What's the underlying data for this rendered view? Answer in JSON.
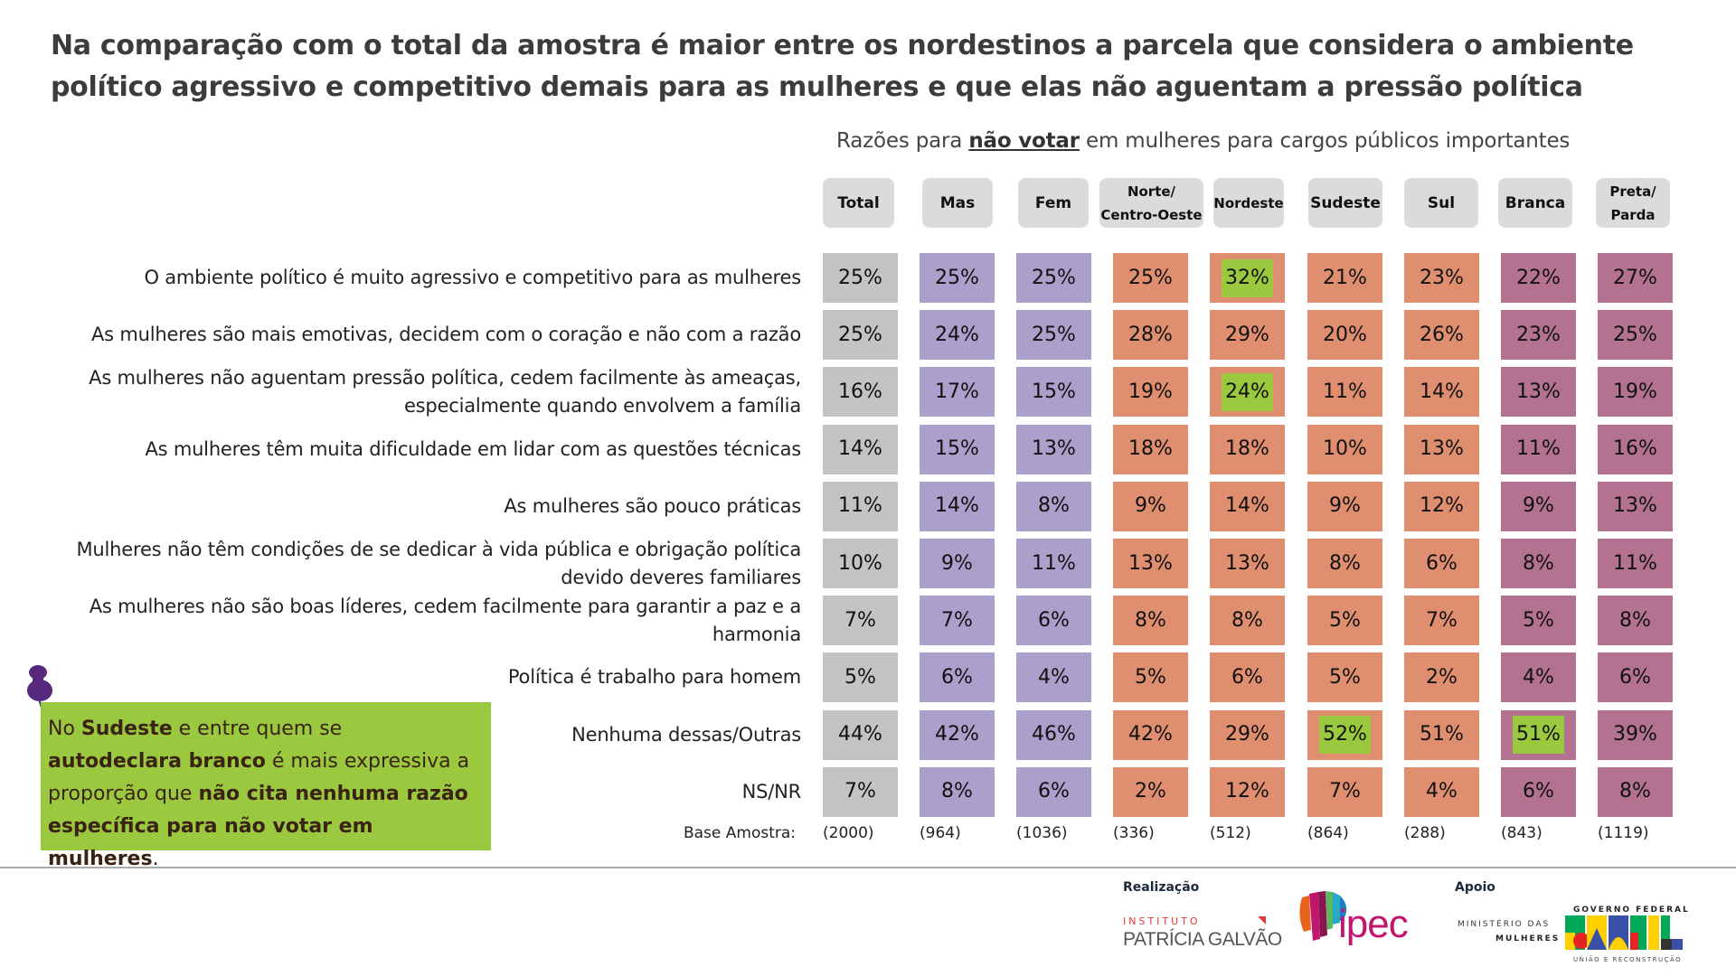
{
  "title": "Na comparação com o total da amostra é maior entre os nordestinos a parcela que considera o ambiente político agressivo e competitivo demais para as mulheres e que elas não aguentam a pressão política",
  "subtitle": {
    "prefix": "Razões para ",
    "emphasis": "não votar",
    "suffix": " em mulheres para cargos públicos importantes"
  },
  "colors": {
    "header_bg": "#dcdbdc",
    "total": "#c4c3c2",
    "gender": "#ab9fcb",
    "region": "#df8e70",
    "race": "#b3728f",
    "highlight": "#9ac83f"
  },
  "chart_data": {
    "type": "table",
    "title": "Razões para não votar em mulheres para cargos públicos importantes",
    "columns": [
      {
        "label": "Total",
        "group": "total",
        "base": "(2000)"
      },
      {
        "label": "Mas",
        "group": "gender",
        "base": "(964)"
      },
      {
        "label": "Fem",
        "group": "gender",
        "base": "(1036)"
      },
      {
        "label": "Norte/ Centro-Oeste",
        "group": "region",
        "base": "(336)"
      },
      {
        "label": "Nordeste",
        "group": "region",
        "base": "(512)"
      },
      {
        "label": "Sudeste",
        "group": "region",
        "base": "(864)"
      },
      {
        "label": "Sul",
        "group": "region",
        "base": "(288)"
      },
      {
        "label": "Branca",
        "group": "race",
        "base": "(843)"
      },
      {
        "label": "Preta/ Parda",
        "group": "race",
        "base": "(1119)"
      }
    ],
    "rows": [
      {
        "label": "O ambiente político é muito agressivo e competitivo para as mulheres",
        "values": [
          25,
          25,
          25,
          25,
          32,
          21,
          23,
          22,
          27
        ],
        "highlight": [
          4
        ]
      },
      {
        "label": "As mulheres são mais emotivas, decidem com o coração e não com a razão",
        "values": [
          25,
          24,
          25,
          28,
          29,
          20,
          26,
          23,
          25
        ],
        "highlight": []
      },
      {
        "label": "As mulheres não aguentam pressão política, cedem facilmente às ameaças, especialmente quando envolvem a família",
        "values": [
          16,
          17,
          15,
          19,
          24,
          11,
          14,
          13,
          19
        ],
        "highlight": [
          4
        ]
      },
      {
        "label": "As mulheres têm muita dificuldade em lidar com as questões técnicas",
        "values": [
          14,
          15,
          13,
          18,
          18,
          10,
          13,
          11,
          16
        ],
        "highlight": []
      },
      {
        "label": "As mulheres são pouco práticas",
        "values": [
          11,
          14,
          8,
          9,
          14,
          9,
          12,
          9,
          13
        ],
        "highlight": []
      },
      {
        "label": "Mulheres não têm condições de se dedicar à vida pública e obrigação política devido deveres familiares",
        "values": [
          10,
          9,
          11,
          13,
          13,
          8,
          6,
          8,
          11
        ],
        "highlight": []
      },
      {
        "label": "As mulheres não são boas líderes, cedem facilmente para garantir a paz e a harmonia",
        "values": [
          7,
          7,
          6,
          8,
          8,
          5,
          7,
          5,
          8
        ],
        "highlight": []
      },
      {
        "label": "Política é trabalho para homem",
        "values": [
          5,
          6,
          4,
          5,
          6,
          5,
          2,
          4,
          6
        ],
        "highlight": []
      },
      {
        "label": "Nenhuma dessas/Outras",
        "values": [
          44,
          42,
          46,
          42,
          29,
          52,
          51,
          51,
          39
        ],
        "highlight": [
          5,
          7
        ]
      },
      {
        "label": "NS/NR",
        "values": [
          7,
          8,
          6,
          2,
          12,
          7,
          4,
          6,
          8
        ],
        "highlight": []
      }
    ],
    "unit": "%",
    "base_label": "Base Amostra:"
  },
  "callout": {
    "segments": [
      {
        "text": "No ",
        "bold": false
      },
      {
        "text": "Sudeste",
        "bold": true
      },
      {
        "text": " e entre quem se ",
        "bold": false
      },
      {
        "text": "autodeclara branco",
        "bold": true
      },
      {
        "text": " é mais expressiva a proporção que ",
        "bold": false
      },
      {
        "text": "não cita nenhuma razão específica para não votar em mulheres",
        "bold": true
      },
      {
        "text": ".",
        "bold": false
      }
    ],
    "pin_icon": "pushpin-icon"
  },
  "footer": {
    "realizacao_label": "Realização",
    "apoio_label": "Apoio",
    "ipg_top": "INSTITUTO",
    "ipg_main": "PATRÍCIA GALVÃO",
    "ipec_text": "ipec",
    "ministerio_line1": "MINISTÉRIO DAS",
    "ministerio_line2": "MULHERES",
    "gov_top": "GOVERNO FEDERAL",
    "gov_bottom": "UNIÃO E RECONSTRUÇÃO"
  }
}
